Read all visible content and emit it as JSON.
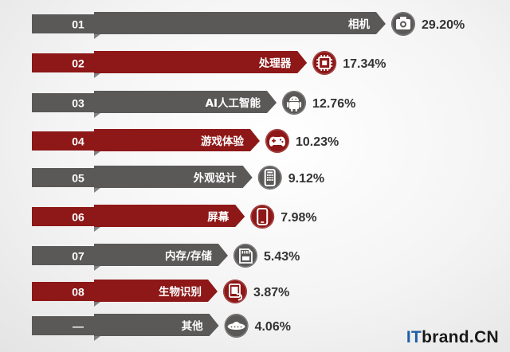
{
  "chart_data": {
    "type": "bar",
    "title": "",
    "xlabel": "",
    "ylabel": "",
    "unit": "%",
    "rows": [
      {
        "rank": "01",
        "label": "相机",
        "value": 29.2,
        "value_label": "29.20%",
        "icon": "camera-icon",
        "style": "gray"
      },
      {
        "rank": "02",
        "label": "处理器",
        "value": 17.34,
        "value_label": "17.34%",
        "icon": "processor-chip-icon",
        "style": "red"
      },
      {
        "rank": "03",
        "label": "AI人工智能",
        "value": 12.76,
        "value_label": "12.76%",
        "icon": "android-robot-icon",
        "style": "gray"
      },
      {
        "rank": "04",
        "label": "游戏体验",
        "value": 10.23,
        "value_label": "10.23%",
        "icon": "gamepad-icon",
        "style": "red"
      },
      {
        "rank": "05",
        "label": "外观设计",
        "value": 9.12,
        "value_label": "9.12%",
        "icon": "phone-design-icon",
        "style": "gray"
      },
      {
        "rank": "06",
        "label": "屏幕",
        "value": 7.98,
        "value_label": "7.98%",
        "icon": "smartphone-screen-icon",
        "style": "red"
      },
      {
        "rank": "07",
        "label": "内存/存储",
        "value": 5.43,
        "value_label": "5.43%",
        "icon": "memory-card-icon",
        "style": "gray"
      },
      {
        "rank": "08",
        "label": "生物识别",
        "value": 3.87,
        "value_label": "3.87%",
        "icon": "fingerprint-phone-icon",
        "style": "red"
      },
      {
        "rank": "—",
        "label": "其他",
        "value": 4.06,
        "value_label": "4.06%",
        "icon": "ufo-icon",
        "style": "gray"
      }
    ]
  },
  "colors": {
    "gray": "#5b5858",
    "red": "#8e1717",
    "value_text": "#333333"
  },
  "brand": {
    "prefix": "IT",
    "rest": "brand.CN"
  }
}
